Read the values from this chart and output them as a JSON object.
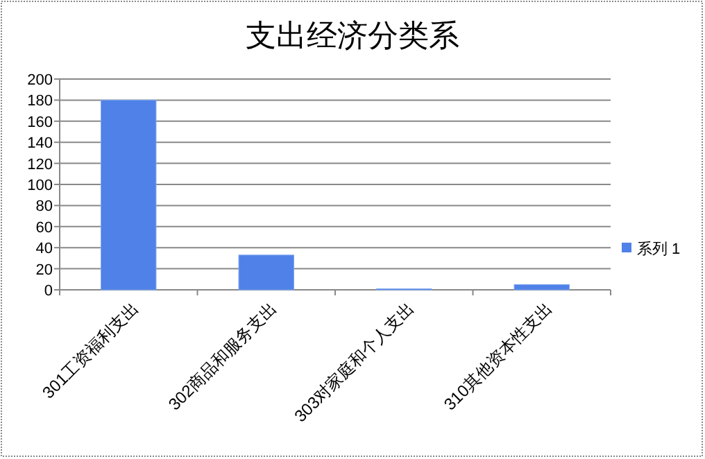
{
  "chart_data": {
    "type": "bar",
    "title": "支出经济分类系",
    "categories": [
      "301工资福利支出",
      "302商品和服务支出",
      "303对家庭和个人支出",
      "310其他资本性支出"
    ],
    "series": [
      {
        "name": "系列 1",
        "color": "#4f81e8",
        "values": [
          180,
          33,
          1,
          5
        ]
      }
    ],
    "ylim": [
      0,
      200
    ],
    "yticks": [
      0,
      20,
      40,
      60,
      80,
      100,
      120,
      140,
      160,
      180,
      200
    ],
    "grid": "y",
    "legend": "right"
  }
}
